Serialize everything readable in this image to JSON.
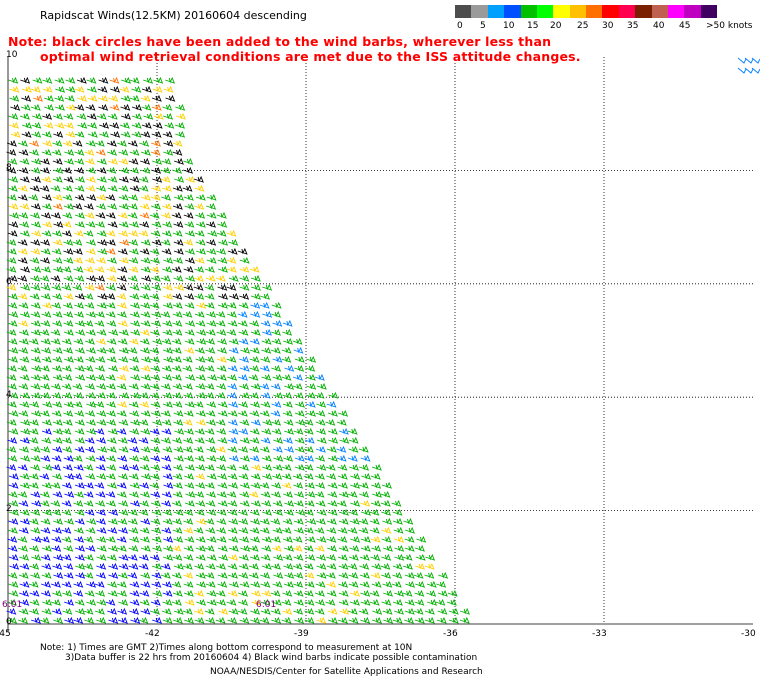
{
  "title": "Rapidscat Winds(12.5KM) 20160604 descending",
  "note": {
    "line1": "Note: black circles have been added to the wind barbs, wherever less than",
    "line2": "optimal wind retrieval conditions are met due to the ISS attitude changes."
  },
  "legend": {
    "colors": [
      "#4d4d4d",
      "#9a9a9a",
      "#00a0ff",
      "#0050ff",
      "#00c000",
      "#00ff00",
      "#ffff00",
      "#ffc000",
      "#ff7000",
      "#ff0000",
      "#ff0050",
      "#7a2000",
      "#c06050",
      "#ff00ff",
      "#c000c0",
      "#400060"
    ],
    "labels": [
      "0",
      "5",
      "10",
      "15",
      "20",
      "25",
      "30",
      "35",
      "40",
      "45",
      ">50"
    ],
    "unit": "knots"
  },
  "map": {
    "lon_labels": [
      "-45",
      "-42",
      "-39",
      "-36",
      "-33",
      "-30"
    ],
    "lat_labels": [
      "0",
      "2",
      "4",
      "6",
      "8",
      "10"
    ],
    "time_labels": [
      "6:01",
      "6:01"
    ],
    "x_range": [
      -45,
      -30
    ],
    "y_range": [
      0,
      10
    ]
  },
  "footer": {
    "line1": "Note: 1) Times are GMT 2)Times along bottom correspond to measurement at 10N",
    "line2": "3)Data buffer is 22 hrs from 20160604 4) Black wind barbs indicate possible contamination",
    "line3": "NOAA/NESDIS/Center for Satellite Applications and Research"
  }
}
